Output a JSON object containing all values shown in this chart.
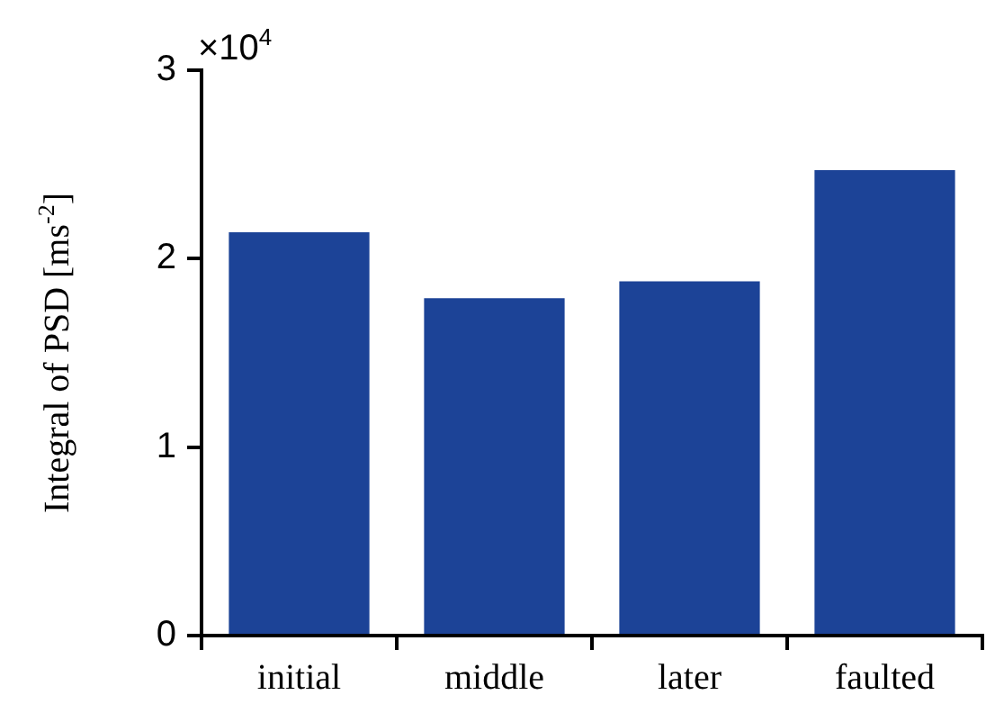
{
  "chart_data": {
    "type": "bar",
    "ylabel": "Integral of PSD [ms$^{-2}$]",
    "annotations": [
      "×10$^{4}$"
    ],
    "categories": [
      "initial",
      "middle",
      "later",
      "faulted"
    ],
    "values": [
      2.14,
      1.79,
      1.88,
      2.47
    ],
    "color": "#1c4397",
    "ylim": [
      0,
      3
    ],
    "yticks": [
      0,
      1,
      2,
      3
    ],
    "grid": false,
    "legend": false
  }
}
